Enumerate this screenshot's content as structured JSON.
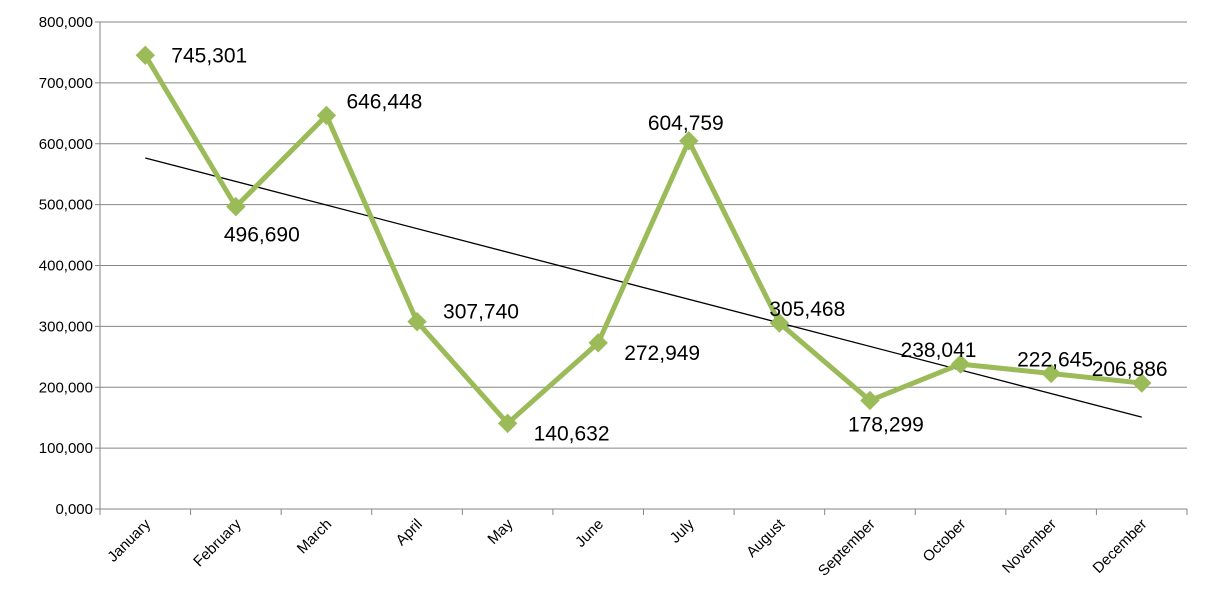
{
  "chart_data": {
    "type": "line",
    "categories": [
      "January",
      "February",
      "March",
      "April",
      "May",
      "June",
      "July",
      "August",
      "September",
      "October",
      "November",
      "December"
    ],
    "series": [
      {
        "values": [
          745301,
          496690,
          646448,
          307740,
          140632,
          272949,
          604759,
          305468,
          178299,
          238041,
          222645,
          206886
        ],
        "color": "#9bbb59",
        "marker": "diamond",
        "data_labels": [
          "745,301",
          "496,690",
          "646,448",
          "307,740",
          "140,632",
          "272,949",
          "604,759",
          "305,468",
          "178,299",
          "238,041",
          "222,645",
          "206,886"
        ]
      }
    ],
    "trendline": {
      "type": "linear",
      "color": "#000000"
    },
    "ylim": [
      0,
      800000
    ],
    "yticks": [
      0,
      100000,
      200000,
      300000,
      400000,
      500000,
      600000,
      700000,
      800000
    ],
    "ytick_labels": [
      "0,000",
      "100,000",
      "200,000",
      "300,000",
      "400,000",
      "500,000",
      "600,000",
      "700,000",
      "800,000"
    ],
    "grid": true,
    "legend": "none",
    "title": "",
    "xlabel": "",
    "ylabel": ""
  }
}
